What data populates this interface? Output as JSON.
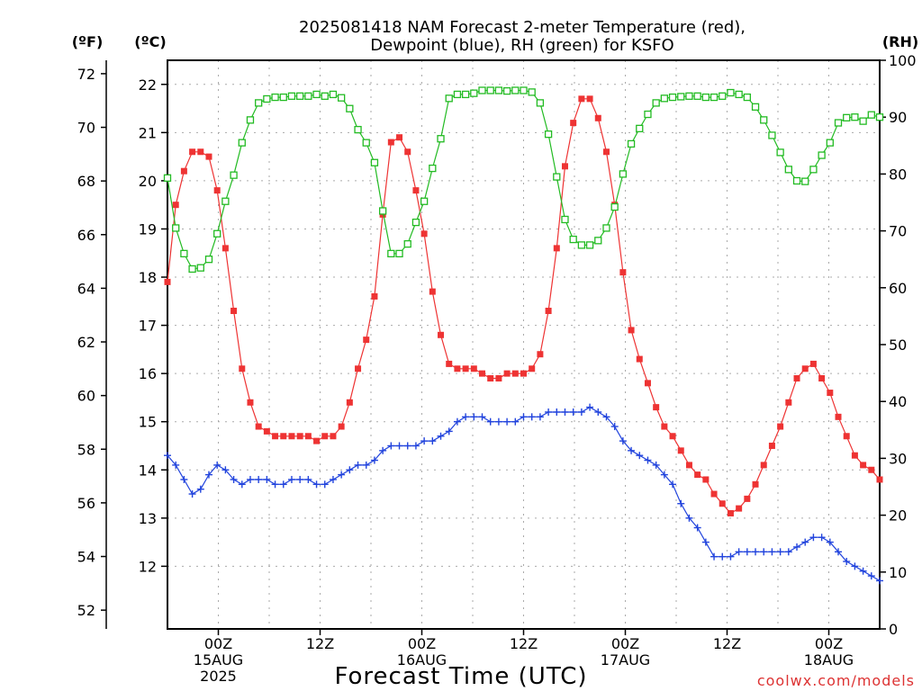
{
  "chart_data": {
    "type": "line",
    "title_line1": "2025081418 NAM Forecast 2-meter Temperature (red),",
    "title_line2": "Dewpoint (blue), RH (green) for KSFO",
    "xlabel": "Forecast Time (UTC)",
    "credit": "coolwx.com/models",
    "y_left_f_label": "(ºF)",
    "y_left_c_label": "(ºC)",
    "y_right_label": "(RH)",
    "f_ticks": [
      "52",
      "54",
      "56",
      "58",
      "60",
      "62",
      "64",
      "66",
      "68",
      "70",
      "72"
    ],
    "c_ticks": [
      "12",
      "13",
      "14",
      "15",
      "16",
      "17",
      "18",
      "19",
      "20",
      "21",
      "22"
    ],
    "rh_ticks": [
      "0",
      "10",
      "20",
      "30",
      "40",
      "50",
      "60",
      "70",
      "80",
      "90",
      "100"
    ],
    "x_ticks": [
      {
        "hour": 6,
        "lines": [
          "00Z",
          "15AUG",
          "2025"
        ]
      },
      {
        "hour": 18,
        "lines": [
          "12Z"
        ]
      },
      {
        "hour": 30,
        "lines": [
          "00Z",
          "16AUG"
        ]
      },
      {
        "hour": 42,
        "lines": [
          "12Z"
        ]
      },
      {
        "hour": 54,
        "lines": [
          "00Z",
          "17AUG"
        ]
      },
      {
        "hour": 66,
        "lines": [
          "12Z"
        ]
      },
      {
        "hour": 78,
        "lines": [
          "00Z",
          "18AUG"
        ]
      }
    ],
    "x_range_hours": [
      0,
      84
    ],
    "f_range": [
      51.3,
      72.5
    ],
    "c_range": [
      10.7,
      22.5
    ],
    "rh_range": [
      0,
      100
    ],
    "grid": true,
    "series": [
      {
        "key": "temperature",
        "axis": "c",
        "color": "#ee3333",
        "marker": "filled-square",
        "values": [
          17.9,
          19.5,
          20.2,
          20.6,
          20.6,
          20.5,
          19.8,
          18.6,
          17.3,
          16.1,
          15.4,
          14.9,
          14.8,
          14.7,
          14.7,
          14.7,
          14.7,
          14.7,
          14.6,
          14.7,
          14.7,
          14.9,
          15.4,
          16.1,
          16.7,
          17.6,
          19.3,
          20.8,
          20.9,
          20.6,
          19.8,
          18.9,
          17.7,
          16.8,
          16.2,
          16.1,
          16.1,
          16.1,
          16.0,
          15.9,
          15.9,
          16.0,
          16.0,
          16.0,
          16.1,
          16.4,
          17.3,
          18.6,
          20.3,
          21.2,
          21.7,
          21.7,
          21.3,
          20.6,
          19.5,
          18.1,
          16.9,
          16.3,
          15.8,
          15.3,
          14.9,
          14.7,
          14.4,
          14.1,
          13.9,
          13.8,
          13.5,
          13.3,
          13.1,
          13.2,
          13.4,
          13.7,
          14.1,
          14.5,
          14.9,
          15.4,
          15.9,
          16.1,
          16.2,
          15.9,
          15.6,
          15.1,
          14.7,
          14.3,
          14.1,
          14.0,
          13.8
        ]
      },
      {
        "key": "dewpoint",
        "axis": "c",
        "color": "#2244dd",
        "marker": "plus",
        "values": [
          14.3,
          14.1,
          13.8,
          13.5,
          13.6,
          13.9,
          14.1,
          14.0,
          13.8,
          13.7,
          13.8,
          13.8,
          13.8,
          13.7,
          13.7,
          13.8,
          13.8,
          13.8,
          13.7,
          13.7,
          13.8,
          13.9,
          14.0,
          14.1,
          14.1,
          14.2,
          14.4,
          14.5,
          14.5,
          14.5,
          14.5,
          14.6,
          14.6,
          14.7,
          14.8,
          15.0,
          15.1,
          15.1,
          15.1,
          15.0,
          15.0,
          15.0,
          15.0,
          15.1,
          15.1,
          15.1,
          15.2,
          15.2,
          15.2,
          15.2,
          15.2,
          15.3,
          15.2,
          15.1,
          14.9,
          14.6,
          14.4,
          14.3,
          14.2,
          14.1,
          13.9,
          13.7,
          13.3,
          13.0,
          12.8,
          12.5,
          12.2,
          12.2,
          12.2,
          12.3,
          12.3,
          12.3,
          12.3,
          12.3,
          12.3,
          12.3,
          12.4,
          12.5,
          12.6,
          12.6,
          12.5,
          12.3,
          12.1,
          12.0,
          11.9,
          11.8,
          11.7
        ]
      },
      {
        "key": "rh",
        "axis": "rh",
        "color": "#22bb22",
        "marker": "open-square",
        "values": [
          79.3,
          70.5,
          66.0,
          63.3,
          63.5,
          65.0,
          69.5,
          75.2,
          79.8,
          85.5,
          89.5,
          92.5,
          93.2,
          93.5,
          93.5,
          93.7,
          93.7,
          93.7,
          94.0,
          93.7,
          94.0,
          93.4,
          91.5,
          87.8,
          85.5,
          82.0,
          73.5,
          66.0,
          66.0,
          67.7,
          71.5,
          75.2,
          81.0,
          86.2,
          93.3,
          94.0,
          94.0,
          94.2,
          94.7,
          94.7,
          94.7,
          94.6,
          94.7,
          94.7,
          94.4,
          92.5,
          87.0,
          79.5,
          72.0,
          68.5,
          67.5,
          67.5,
          68.3,
          70.5,
          74.2,
          80.0,
          85.3,
          88.0,
          90.5,
          92.5,
          93.3,
          93.5,
          93.6,
          93.7,
          93.7,
          93.5,
          93.5,
          93.7,
          94.3,
          94.0,
          93.5,
          91.8,
          89.5,
          86.8,
          83.8,
          80.8,
          78.8,
          78.7,
          80.8,
          83.3,
          85.5,
          89.0,
          89.9,
          90.0,
          89.3,
          90.4,
          90.0
        ]
      }
    ]
  }
}
